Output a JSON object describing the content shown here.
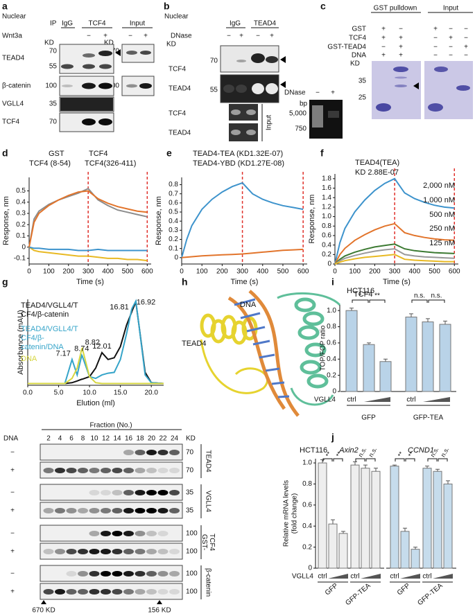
{
  "panel_labels": [
    "a",
    "b",
    "c",
    "d",
    "e",
    "f",
    "g",
    "h",
    "i",
    "j"
  ],
  "panel_a": {
    "compartment": "Nuclear",
    "ip": "IP",
    "ip_lanes": [
      "IgG",
      "TCF4"
    ],
    "input": "Input",
    "treatment": "Wnt3a",
    "signs": [
      "−",
      "+",
      "−",
      "+"
    ],
    "kd": [
      "KD",
      "KD"
    ],
    "rows": [
      "TEAD4",
      "β-catenin",
      "VGLL4",
      "TCF4"
    ],
    "mw": [
      70,
      55,
      100,
      35,
      70
    ],
    "input_mw": [
      70,
      100
    ]
  },
  "panel_b": {
    "compartment": "Nuclear",
    "lanes": [
      "IgG",
      "TEAD4"
    ],
    "treatment": "DNase",
    "signs": [
      "−",
      "+",
      "−",
      "+"
    ],
    "kd": "KD",
    "mw": [
      70,
      55
    ],
    "rows": [
      "TCF4",
      "TEAD4"
    ],
    "input_rows": [
      "TCF4",
      "TEAD4"
    ],
    "input": "Input",
    "gel": {
      "treatment": "DNase",
      "signs": [
        "−",
        "+"
      ],
      "unit": "bp",
      "markers": [
        "5,000",
        750
      ]
    }
  },
  "panel_c": {
    "headers": [
      "GST pulldown",
      "Input"
    ],
    "rows": [
      {
        "name": "GST",
        "signs": [
          "+",
          "−",
          "+",
          "−",
          "−"
        ]
      },
      {
        "name": "TCF4",
        "signs": [
          "+",
          "+",
          "−",
          "+",
          "−"
        ]
      },
      {
        "name": "GST-TEAD4",
        "signs": [
          "−",
          "+",
          "−",
          "−",
          "+"
        ]
      },
      {
        "name": "DNA",
        "signs": [
          "+",
          "+",
          "−",
          "−",
          "−"
        ]
      }
    ],
    "kd": "KD",
    "mw": [
      35,
      25
    ]
  },
  "panel_h": {
    "labels": [
      "TCF4",
      "DNA",
      "TEAD4"
    ]
  },
  "fraction_gel": {
    "title": "Fraction (No.)",
    "row_header": "DNA",
    "fractions": [
      2,
      4,
      6,
      8,
      10,
      12,
      14,
      16,
      18,
      20,
      22,
      24
    ],
    "kd": "KD",
    "rows": [
      {
        "sign": "−",
        "mw": 70
      },
      {
        "sign": "+",
        "mw": 70
      },
      {
        "sign": "−",
        "mw": 35
      },
      {
        "sign": "+",
        "mw": 35
      },
      {
        "sign": "−",
        "mw": 100
      },
      {
        "sign": "+",
        "mw": 100
      },
      {
        "sign": "−",
        "mw": 100
      },
      {
        "sign": "+",
        "mw": 100
      }
    ],
    "proteins": [
      [
        "TEAD4"
      ],
      [
        "VGLL4"
      ],
      [
        "GST-",
        "TCF4"
      ],
      [
        "β-catenin"
      ]
    ],
    "markers": [
      "670 KD",
      "156 KD"
    ]
  },
  "chart_data": [
    {
      "type": "line",
      "x": [
        0,
        25,
        50,
        100,
        150,
        200,
        250,
        300,
        350,
        400,
        450,
        500,
        550,
        600
      ],
      "series": [
        {
          "name": "GST",
          "color": "#e8b923",
          "values": [
            0,
            -0.03,
            -0.04,
            -0.05,
            -0.06,
            -0.07,
            -0.08,
            -0.08,
            -0.09,
            -0.1,
            -0.1,
            -0.11,
            -0.11,
            -0.12
          ]
        },
        {
          "name": "TCF4 (8-54)",
          "color": "#3d93cc",
          "values": [
            0,
            -0.01,
            -0.01,
            -0.02,
            -0.02,
            -0.02,
            -0.03,
            -0.03,
            -0.02,
            -0.03,
            -0.03,
            -0.03,
            -0.03,
            -0.03
          ]
        },
        {
          "name": "TCF4",
          "color": "#8c8c8c",
          "values": [
            0,
            0.25,
            0.32,
            0.38,
            0.42,
            0.45,
            0.48,
            0.52,
            0.42,
            0.37,
            0.33,
            0.31,
            0.29,
            0.27
          ]
        },
        {
          "name": "TCF4(326-411)",
          "color": "#e2742b",
          "values": [
            0,
            0.22,
            0.3,
            0.37,
            0.42,
            0.46,
            0.49,
            0.5,
            0.43,
            0.39,
            0.36,
            0.34,
            0.32,
            0.31
          ]
        }
      ],
      "xlim": [
        0,
        620
      ],
      "ylim": [
        -0.15,
        0.62
      ],
      "xticks": [
        0,
        100,
        200,
        300,
        400,
        500,
        600
      ],
      "yticks": [
        -0.1,
        0,
        0.1,
        0.2,
        0.3,
        0.4,
        0.5
      ],
      "xlabel": "Time (s)",
      "ylabel": "Response, nm",
      "vlines": [
        300,
        600
      ],
      "vline_color": "#e0302a"
    },
    {
      "type": "line",
      "x": [
        0,
        25,
        50,
        100,
        150,
        200,
        250,
        300,
        350,
        400,
        450,
        500,
        550,
        600
      ],
      "series": [
        {
          "name": "TEAD4-TEA (KD1.32E-07)",
          "color": "#3d93cc",
          "values": [
            0,
            0.2,
            0.35,
            0.53,
            0.64,
            0.72,
            0.78,
            0.82,
            0.7,
            0.64,
            0.6,
            0.57,
            0.55,
            0.53
          ]
        },
        {
          "name": "TEAD4-YBD (KD1.27E-08)",
          "color": "#e2742b",
          "values": [
            0,
            0.005,
            0.01,
            0.02,
            0.025,
            0.03,
            0.035,
            0.04,
            0.05,
            0.06,
            0.07,
            0.08,
            0.085,
            0.09
          ]
        }
      ],
      "xlim": [
        0,
        620
      ],
      "ylim": [
        -0.07,
        0.88
      ],
      "xticks": [
        0,
        100,
        200,
        300,
        400,
        500,
        600
      ],
      "yticks": [
        0,
        0.1,
        0.2,
        0.3,
        0.4,
        0.5,
        0.6,
        0.7,
        0.8
      ],
      "xlabel": "Time (s)",
      "ylabel": "Response, nm",
      "vlines": [
        300,
        600
      ],
      "vline_color": "#e0302a"
    },
    {
      "type": "line",
      "annotations": [
        "TEAD4(TEA)",
        "KD 2.88E-07"
      ],
      "x": [
        0,
        25,
        50,
        100,
        150,
        200,
        250,
        300,
        350,
        400,
        450,
        500,
        550,
        600
      ],
      "series": [
        {
          "name": "2,000 nM",
          "color": "#3d93cc",
          "values": [
            0,
            0.45,
            0.75,
            1.1,
            1.35,
            1.55,
            1.7,
            1.8,
            1.5,
            1.38,
            1.3,
            1.24,
            1.2,
            1.18
          ]
        },
        {
          "name": "1,000 nM",
          "color": "#e2742b",
          "values": [
            0,
            0.2,
            0.33,
            0.5,
            0.62,
            0.72,
            0.8,
            0.85,
            0.66,
            0.6,
            0.56,
            0.53,
            0.51,
            0.5
          ]
        },
        {
          "name": "500 nM",
          "color": "#3c7a32",
          "values": [
            0,
            0.1,
            0.17,
            0.25,
            0.31,
            0.36,
            0.39,
            0.42,
            0.32,
            0.28,
            0.26,
            0.24,
            0.23,
            0.22
          ]
        },
        {
          "name": "250 nM",
          "color": "#999999",
          "values": [
            0,
            0.07,
            0.12,
            0.18,
            0.23,
            0.27,
            0.3,
            0.32,
            0.2,
            0.17,
            0.15,
            0.14,
            0.13,
            0.12
          ]
        },
        {
          "name": "125 nM",
          "color": "#e8b923",
          "values": [
            0,
            0.04,
            0.07,
            0.11,
            0.14,
            0.16,
            0.18,
            0.2,
            0.1,
            0.08,
            0.07,
            0.06,
            0.05,
            0.05
          ]
        }
      ],
      "xlim": [
        0,
        620
      ],
      "ylim": [
        0,
        1.9
      ],
      "xticks": [
        0,
        100,
        200,
        300,
        400,
        500,
        600
      ],
      "yticks": [
        0,
        0.2,
        0.4,
        0.6,
        0.8,
        {
          "value": 1,
          "label": "1.0"
        },
        1.2,
        1.4,
        1.6,
        1.8
      ],
      "xlabel": "Time (s)",
      "ylabel": "Response, nm",
      "vlines": [
        300,
        600
      ],
      "vline_color": "#e0302a"
    },
    {
      "type": "line",
      "x": [
        0,
        2,
        4,
        6,
        7.17,
        8,
        8.74,
        8.82,
        10,
        11,
        12.01,
        13,
        14,
        15,
        16,
        16.81,
        16.92,
        17.5,
        18,
        19,
        20,
        22
      ],
      "series": [
        {
          "name": "TEAD4/VGLL4/TCF4/β-catenin",
          "color": "#111111",
          "values": [
            2,
            2,
            2,
            2,
            3,
            5,
            7,
            7,
            10,
            20,
            38,
            30,
            32,
            45,
            70,
            85,
            87,
            97,
            70,
            15,
            3,
            2
          ]
        },
        {
          "name": "TEAD4/VGLL4/TCF4/β-catenin/DNA",
          "color": "#35a4c9",
          "values": [
            2,
            2,
            2,
            2,
            30,
            12,
            35,
            34,
            10,
            8,
            12,
            14,
            15,
            30,
            60,
            88,
            90,
            98,
            70,
            12,
            3,
            2
          ]
        },
        {
          "name": "DNA",
          "color": "#d6d640",
          "values": [
            2,
            2,
            2,
            2,
            8,
            20,
            42,
            43,
            10,
            3,
            2,
            2,
            2,
            2,
            2,
            2,
            2,
            2,
            2,
            2,
            2,
            2
          ]
        }
      ],
      "peaks": [
        {
          "value": 16.81,
          "series": 0
        },
        {
          "value": 16.92,
          "series": 1
        },
        {
          "value": 12.01,
          "series": 0
        },
        {
          "value": 7.17,
          "series": 1
        },
        {
          "value": 8.74,
          "series": 1
        },
        {
          "value": 8.82,
          "series": 2
        }
      ],
      "xlim": [
        0,
        22
      ],
      "ylim": [
        0,
        100
      ],
      "xticks": [
        {
          "value": 0,
          "label": "0.0"
        },
        {
          "value": 5,
          "label": "5.0"
        },
        {
          "value": 10,
          "label": "10.0"
        },
        {
          "value": 15,
          "label": "15.0"
        },
        {
          "value": 20,
          "label": "20.0"
        }
      ],
      "xlabel": "Elution (ml)",
      "ylabel": "Absorbance (mAU)"
    },
    {
      "type": "bar",
      "cell_line": "HCT116",
      "categories": [
        "ctrl",
        null,
        null,
        "ctrl",
        null,
        null
      ],
      "values": [
        1.0,
        0.58,
        0.37,
        0.92,
        0.86,
        0.83
      ],
      "errors": [
        0.03,
        0.02,
        0.03,
        0.04,
        0.04,
        0.04
      ],
      "color": "#b9d3e8",
      "ylim": [
        0,
        1.07
      ],
      "yticks": [
        0,
        0.2,
        0.4,
        0.6,
        0.8,
        {
          "value": 1,
          "label": "1.0"
        }
      ],
      "ylabel": "TOP/FOP ratio",
      "row_label": "VGLL4",
      "groups": [
        "GFP",
        "GFP-TEA"
      ],
      "significance": [
        "*",
        "**",
        "n.s.",
        "n.s."
      ]
    },
    {
      "type": "bar",
      "cell_line": "HCT116",
      "title": "Axin2",
      "categories": [
        "ctrl",
        null,
        null,
        "ctrl",
        null,
        null
      ],
      "values": [
        1.0,
        0.42,
        0.33,
        0.98,
        0.95,
        0.92
      ],
      "errors": [
        0.03,
        0.04,
        0.02,
        0.03,
        0.03,
        0.03
      ],
      "color": "#eeeeee",
      "ylim": [
        0,
        1.04
      ],
      "yticks": [
        0,
        0.2,
        0.4,
        0.6,
        0.8,
        {
          "value": 1,
          "label": "1.0"
        }
      ],
      "ylabel_lines": [
        "Relative mRNA levels",
        "(fold change)"
      ],
      "row_label": "VGLL4",
      "groups": [
        "GFP",
        "GFP-TEA"
      ],
      "significance": [
        "**",
        "**",
        "n.s.",
        "n.s."
      ]
    },
    {
      "type": "bar",
      "title": "CCND1",
      "categories": [
        "ctrl",
        null,
        null,
        "ctrl",
        null,
        null
      ],
      "values": [
        0.97,
        0.35,
        0.18,
        0.95,
        0.92,
        0.8
      ],
      "errors": [
        0.01,
        0.03,
        0.02,
        0.02,
        0.02,
        0.03
      ],
      "color": "#c6dcec",
      "ylim": [
        0,
        1.04
      ],
      "groups": [
        "GFP",
        "GFP-TEA"
      ],
      "significance": [
        "**",
        "**",
        "n.s.",
        "n.s."
      ]
    }
  ]
}
